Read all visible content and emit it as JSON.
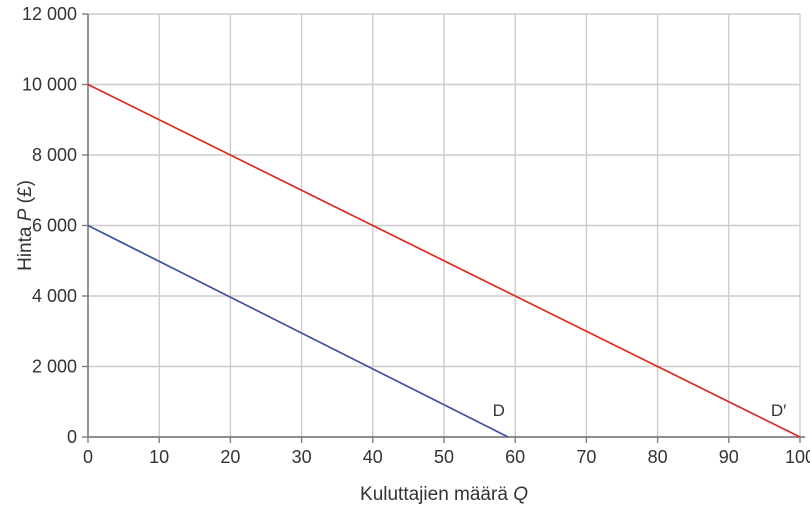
{
  "figure": {
    "background": "#ffffff",
    "text_color": "#333333",
    "axis_color": "#7f7f7f",
    "grid_color": "#cccccc"
  },
  "chart_data": {
    "type": "line",
    "description": "Two parallel downward-sloping demand curves, D (blue) and D′ (red), showing an outward shift in demand",
    "title": "",
    "xlabel_parts": [
      {
        "text": "Kuluttajien määrä ",
        "italic": false
      },
      {
        "text": "Q",
        "italic": true
      }
    ],
    "ylabel_parts": [
      {
        "text": "Hinta ",
        "italic": false
      },
      {
        "text": "P",
        "italic": true
      },
      {
        "text": " (£)",
        "italic": false
      }
    ],
    "xlim": [
      0,
      100
    ],
    "ylim": [
      0,
      12000
    ],
    "grid": true,
    "legend_position": "inline-labels",
    "xticks": [
      {
        "value": 0,
        "label": "0"
      },
      {
        "value": 10,
        "label": "10"
      },
      {
        "value": 20,
        "label": "20"
      },
      {
        "value": 30,
        "label": "30"
      },
      {
        "value": 40,
        "label": "40"
      },
      {
        "value": 50,
        "label": "50"
      },
      {
        "value": 60,
        "label": "60"
      },
      {
        "value": 70,
        "label": "70"
      },
      {
        "value": 80,
        "label": "80"
      },
      {
        "value": 90,
        "label": "90"
      },
      {
        "value": 100,
        "label": "100"
      }
    ],
    "yticks": [
      {
        "value": 0,
        "label": "0"
      },
      {
        "value": 2000,
        "label": "2 000"
      },
      {
        "value": 4000,
        "label": "4 000"
      },
      {
        "value": 6000,
        "label": "6 000"
      },
      {
        "value": 8000,
        "label": "8 000"
      },
      {
        "value": 10000,
        "label": "10 000"
      },
      {
        "value": 12000,
        "label": "12 000"
      }
    ],
    "series": [
      {
        "name": "D",
        "label": "D",
        "color": "#3f51a1",
        "points": [
          [
            0,
            6000
          ],
          [
            59,
            0
          ]
        ],
        "label_anchor": {
          "x": 57.7,
          "y": 600
        }
      },
      {
        "name": "D-prime",
        "label": "D′",
        "color": "#dc2b1c",
        "points": [
          [
            0,
            10000
          ],
          [
            100,
            0
          ]
        ],
        "label_anchor": {
          "x": 97,
          "y": 600
        }
      }
    ]
  }
}
